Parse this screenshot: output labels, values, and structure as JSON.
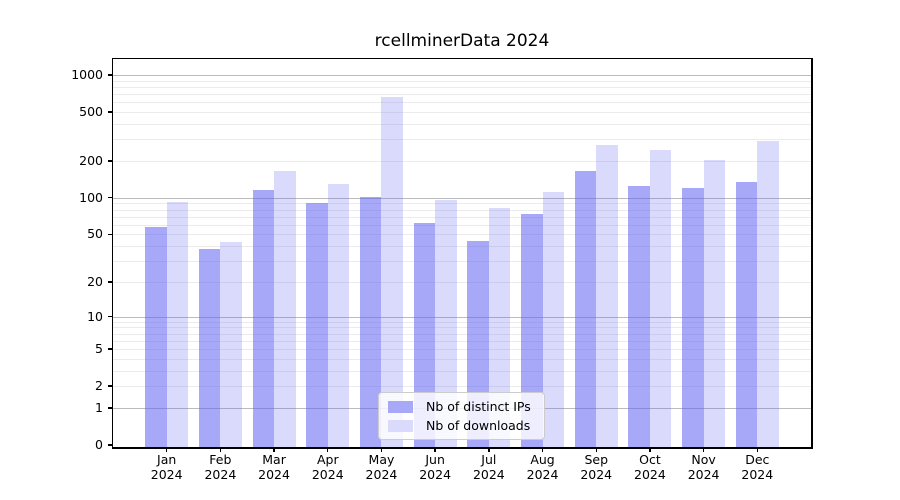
{
  "chart": {
    "title": "rcellminerData 2024"
  },
  "chart_data": {
    "type": "bar",
    "title": "rcellminerData 2024",
    "categories": [
      "Jan 2024",
      "Feb 2024",
      "Mar 2024",
      "Apr 2024",
      "May 2024",
      "Jun 2024",
      "Jul 2024",
      "Aug 2024",
      "Sep 2024",
      "Oct 2024",
      "Nov 2024",
      "Dec 2024"
    ],
    "month_labels": [
      "Jan",
      "Feb",
      "Mar",
      "Apr",
      "May",
      "Jun",
      "Jul",
      "Aug",
      "Sep",
      "Oct",
      "Nov",
      "Dec"
    ],
    "year_label": "2024",
    "series": [
      {
        "name": "Nb of distinct IPs",
        "color": "rgba(100,100,242,0.56)",
        "swatch_hex": "#a8a8f8",
        "values": [
          58,
          38,
          116,
          90,
          102,
          62,
          44,
          73,
          165,
          125,
          120,
          134
        ]
      },
      {
        "name": "Nb of downloads",
        "color": "rgba(100,100,242,0.24)",
        "swatch_hex": "#dadafc",
        "values": [
          92,
          43,
          166,
          130,
          660,
          96,
          82,
          112,
          268,
          243,
          203,
          290
        ]
      }
    ],
    "yscale": "log1p",
    "yticks": [
      0,
      1,
      2,
      5,
      10,
      20,
      50,
      100,
      200,
      500,
      1000
    ],
    "ylim": [
      0,
      1340
    ],
    "xlabel": "",
    "ylabel": "",
    "grid": "horizontal",
    "grid_minor": true,
    "legend_position": "lower center inside",
    "colors": {
      "major_grid": "#bbbbbb",
      "minor_grid": "#ebebeb",
      "spine": "#000000",
      "text": "#000000",
      "legend_border": "#cccccc",
      "legend_bg": "rgba(255,255,255,0.8)",
      "background": "#ffffff"
    }
  }
}
